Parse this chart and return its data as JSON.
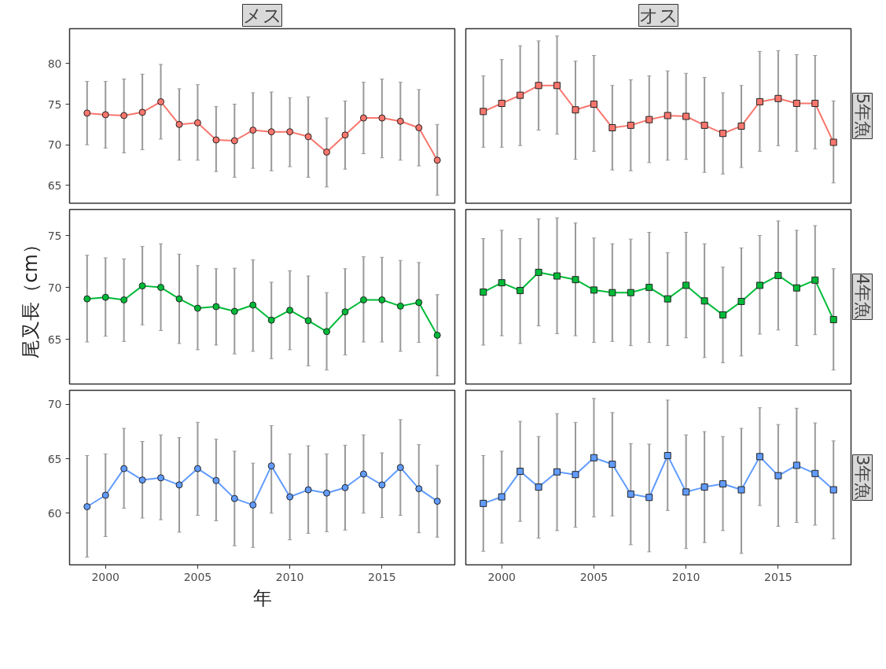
{
  "chart_data": [
    {
      "type": "line",
      "title": "メス",
      "x": [
        1999,
        2000,
        2001,
        2002,
        2003,
        2004,
        2005,
        2006,
        2007,
        2008,
        2009,
        2010,
        2011,
        2012,
        2013,
        2014,
        2015,
        2016,
        2017,
        2018
      ],
      "color": "#f8766d",
      "marker": "circle",
      "xlim": [
        1998.05,
        2018.95
      ],
      "ylim": [
        62.8,
        84.3
      ],
      "xticks": [
        2000,
        2005,
        2010,
        2015
      ],
      "yticks": [
        65,
        70,
        75,
        80
      ],
      "tick_labels": "y",
      "values": [
        73.9,
        73.7,
        73.6,
        74.0,
        75.3,
        72.5,
        72.7,
        70.6,
        70.5,
        71.8,
        71.6,
        71.6,
        71.0,
        69.1,
        71.2,
        73.3,
        73.3,
        72.9,
        72.1,
        68.1
      ],
      "errors": [
        [
          70.0,
          77.8
        ],
        [
          69.6,
          77.8
        ],
        [
          69.0,
          78.1
        ],
        [
          69.4,
          78.7
        ],
        [
          70.7,
          79.9
        ],
        [
          68.1,
          76.9
        ],
        [
          68.1,
          77.4
        ],
        [
          66.7,
          74.7
        ],
        [
          66.0,
          75.0
        ],
        [
          67.1,
          76.4
        ],
        [
          66.8,
          76.5
        ],
        [
          67.3,
          75.8
        ],
        [
          66.0,
          75.9
        ],
        [
          64.8,
          73.3
        ],
        [
          67.0,
          75.4
        ],
        [
          68.9,
          77.7
        ],
        [
          68.4,
          78.1
        ],
        [
          68.1,
          77.7
        ],
        [
          67.4,
          76.8
        ],
        [
          63.8,
          72.5
        ]
      ]
    },
    {
      "type": "line",
      "title": "オス",
      "y2label": "5年魚",
      "x": [
        1999,
        2000,
        2001,
        2002,
        2003,
        2004,
        2005,
        2006,
        2007,
        2008,
        2009,
        2010,
        2011,
        2012,
        2013,
        2014,
        2015,
        2016,
        2017,
        2018
      ],
      "color": "#f8766d",
      "marker": "square",
      "xlim": [
        1998.05,
        2018.95
      ],
      "ylim": [
        62.8,
        84.3
      ],
      "xticks": [
        2000,
        2005,
        2010,
        2015
      ],
      "yticks": [
        65,
        70,
        75,
        80
      ],
      "tick_labels": false,
      "values": [
        74.1,
        75.1,
        76.1,
        77.3,
        77.3,
        74.3,
        75.0,
        72.1,
        72.4,
        73.1,
        73.6,
        73.5,
        72.4,
        71.4,
        72.3,
        75.3,
        75.7,
        75.1,
        75.1,
        70.3
      ],
      "errors": [
        [
          69.7,
          78.5
        ],
        [
          69.7,
          80.5
        ],
        [
          69.9,
          82.2
        ],
        [
          71.8,
          82.8
        ],
        [
          71.3,
          83.4
        ],
        [
          68.2,
          80.3
        ],
        [
          69.2,
          81.0
        ],
        [
          66.9,
          77.3
        ],
        [
          66.8,
          78.0
        ],
        [
          67.8,
          78.5
        ],
        [
          68.1,
          79.1
        ],
        [
          68.2,
          78.8
        ],
        [
          66.6,
          78.3
        ],
        [
          66.4,
          76.4
        ],
        [
          67.2,
          77.3
        ],
        [
          69.2,
          81.5
        ],
        [
          69.9,
          81.6
        ],
        [
          69.2,
          81.1
        ],
        [
          69.5,
          81.0
        ],
        [
          65.3,
          75.4
        ]
      ]
    },
    {
      "type": "line",
      "ylabel": "尾叉長（cm）",
      "x": [
        1999,
        2000,
        2001,
        2002,
        2003,
        2004,
        2005,
        2006,
        2007,
        2008,
        2009,
        2010,
        2011,
        2012,
        2013,
        2014,
        2015,
        2016,
        2017,
        2018
      ],
      "color": "#00ba38",
      "marker": "circle",
      "xlim": [
        1998.05,
        2018.95
      ],
      "ylim": [
        60.7,
        77.5
      ],
      "xticks": [
        2000,
        2005,
        2010,
        2015
      ],
      "yticks": [
        65,
        70,
        75
      ],
      "tick_labels": "y",
      "values": [
        68.9,
        69.05,
        68.8,
        70.15,
        70.0,
        68.9,
        68.0,
        68.15,
        67.7,
        68.3,
        66.85,
        67.8,
        66.8,
        65.75,
        67.65,
        68.8,
        68.8,
        68.2,
        68.55,
        65.4
      ],
      "errors": [
        [
          64.75,
          73.1
        ],
        [
          65.3,
          72.85
        ],
        [
          64.8,
          72.75
        ],
        [
          66.4,
          73.95
        ],
        [
          65.85,
          74.2
        ],
        [
          64.6,
          73.2
        ],
        [
          64.0,
          72.1
        ],
        [
          64.45,
          71.8
        ],
        [
          63.6,
          71.85
        ],
        [
          63.85,
          72.65
        ],
        [
          63.15,
          70.5
        ],
        [
          64.0,
          71.6
        ],
        [
          62.45,
          71.1
        ],
        [
          62.05,
          69.5
        ],
        [
          63.5,
          71.8
        ],
        [
          64.75,
          72.95
        ],
        [
          64.75,
          72.9
        ],
        [
          63.85,
          72.6
        ],
        [
          64.7,
          72.4
        ],
        [
          61.5,
          69.3
        ]
      ]
    },
    {
      "type": "line",
      "y2label": "4年魚",
      "x": [
        1999,
        2000,
        2001,
        2002,
        2003,
        2004,
        2005,
        2006,
        2007,
        2008,
        2009,
        2010,
        2011,
        2012,
        2013,
        2014,
        2015,
        2016,
        2017,
        2018
      ],
      "color": "#00ba38",
      "marker": "square",
      "xlim": [
        1998.05,
        2018.95
      ],
      "ylim": [
        60.7,
        77.5
      ],
      "xticks": [
        2000,
        2005,
        2010,
        2015
      ],
      "yticks": [
        65,
        70,
        75
      ],
      "tick_labels": false,
      "values": [
        69.55,
        70.45,
        69.7,
        71.45,
        71.1,
        70.75,
        69.75,
        69.5,
        69.5,
        70.0,
        68.9,
        70.2,
        68.7,
        67.35,
        68.65,
        70.2,
        71.15,
        69.95,
        70.7,
        66.9
      ],
      "errors": [
        [
          64.45,
          74.7
        ],
        [
          65.35,
          75.5
        ],
        [
          64.6,
          74.7
        ],
        [
          66.3,
          76.6
        ],
        [
          65.55,
          76.7
        ],
        [
          65.35,
          76.2
        ],
        [
          64.7,
          74.75
        ],
        [
          64.8,
          74.2
        ],
        [
          64.4,
          74.65
        ],
        [
          64.7,
          75.3
        ],
        [
          64.4,
          73.35
        ],
        [
          65.15,
          75.3
        ],
        [
          63.25,
          74.2
        ],
        [
          62.75,
          71.95
        ],
        [
          63.4,
          73.8
        ],
        [
          65.5,
          75.0
        ],
        [
          65.9,
          76.4
        ],
        [
          64.4,
          75.5
        ],
        [
          65.45,
          75.95
        ],
        [
          62.05,
          71.8
        ]
      ]
    },
    {
      "type": "line",
      "xlabel": "年",
      "x": [
        1999,
        2000,
        2001,
        2002,
        2003,
        2004,
        2005,
        2006,
        2007,
        2008,
        2009,
        2010,
        2011,
        2012,
        2013,
        2014,
        2015,
        2016,
        2017,
        2018
      ],
      "color": "#619cff",
      "marker": "circle",
      "xlim": [
        1998.05,
        2018.95
      ],
      "ylim": [
        55.25,
        71.3
      ],
      "xticks": [
        2000,
        2005,
        2010,
        2015
      ],
      "yticks": [
        60,
        65,
        70
      ],
      "values": [
        60.6,
        61.65,
        64.1,
        63.05,
        63.25,
        62.6,
        64.1,
        63.0,
        61.35,
        60.75,
        64.35,
        61.5,
        62.15,
        61.85,
        62.35,
        63.6,
        62.6,
        64.2,
        62.25,
        61.1
      ],
      "errors": [
        [
          55.95,
          65.3
        ],
        [
          57.85,
          65.45
        ],
        [
          60.45,
          67.8
        ],
        [
          59.55,
          66.6
        ],
        [
          59.4,
          67.2
        ],
        [
          58.25,
          66.95
        ],
        [
          59.8,
          68.35
        ],
        [
          59.3,
          66.8
        ],
        [
          57.0,
          65.7
        ],
        [
          56.85,
          64.6
        ],
        [
          60.0,
          68.05
        ],
        [
          57.55,
          65.45
        ],
        [
          58.15,
          66.2
        ],
        [
          58.3,
          65.45
        ],
        [
          58.45,
          66.25
        ],
        [
          60.0,
          67.2
        ],
        [
          59.6,
          65.55
        ],
        [
          59.8,
          68.6
        ],
        [
          58.2,
          66.3
        ],
        [
          57.8,
          64.4
        ]
      ]
    },
    {
      "type": "line",
      "y2label": "3年魚",
      "x": [
        1999,
        2000,
        2001,
        2002,
        2003,
        2004,
        2005,
        2006,
        2007,
        2008,
        2009,
        2010,
        2011,
        2012,
        2013,
        2014,
        2015,
        2016,
        2017,
        2018
      ],
      "color": "#619cff",
      "marker": "square",
      "xlim": [
        1998.05,
        2018.95
      ],
      "ylim": [
        55.25,
        71.3
      ],
      "xticks": [
        2000,
        2005,
        2010,
        2015
      ],
      "yticks": [
        60,
        65,
        70
      ],
      "tick_labels": "x",
      "values": [
        60.9,
        61.5,
        63.85,
        62.4,
        63.8,
        63.55,
        65.1,
        64.5,
        61.75,
        61.45,
        65.3,
        61.95,
        62.4,
        62.7,
        62.15,
        65.2,
        63.45,
        64.4,
        63.65,
        62.15
      ],
      "errors": [
        [
          56.5,
          65.3
        ],
        [
          57.25,
          65.7
        ],
        [
          59.25,
          68.45
        ],
        [
          57.7,
          67.05
        ],
        [
          58.4,
          69.15
        ],
        [
          58.7,
          68.35
        ],
        [
          59.65,
          70.55
        ],
        [
          59.75,
          69.25
        ],
        [
          57.1,
          66.4
        ],
        [
          56.45,
          66.35
        ],
        [
          60.25,
          70.4
        ],
        [
          56.75,
          67.2
        ],
        [
          57.3,
          67.5
        ],
        [
          58.4,
          67.05
        ],
        [
          56.3,
          67.8
        ],
        [
          60.7,
          69.7
        ],
        [
          58.8,
          68.15
        ],
        [
          59.15,
          69.65
        ],
        [
          58.9,
          68.3
        ],
        [
          57.65,
          66.65
        ]
      ]
    }
  ]
}
